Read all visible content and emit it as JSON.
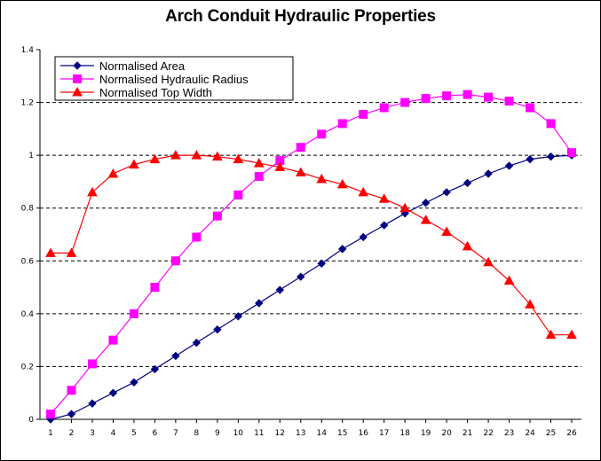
{
  "chart_data": {
    "type": "line",
    "title": "Arch Conduit Hydraulic Properties",
    "xlabel": "",
    "ylabel": "",
    "categories": [
      "1",
      "2",
      "3",
      "4",
      "5",
      "6",
      "7",
      "8",
      "9",
      "10",
      "11",
      "12",
      "13",
      "14",
      "15",
      "16",
      "17",
      "18",
      "19",
      "20",
      "21",
      "22",
      "23",
      "24",
      "25",
      "26"
    ],
    "ylim": [
      0,
      1.4
    ],
    "yticks": [
      "0",
      "0.2",
      "0.4",
      "0.6",
      "0.8",
      "1",
      "1.2",
      "1.4"
    ],
    "grid": "horizontal dashed at 0.2, 0.6, 0.8, 1.0, 1.2",
    "legend_position": "top-left",
    "series": [
      {
        "name": "Normalised Area",
        "color": "#000080",
        "marker": "diamond",
        "values": [
          0.0,
          0.02,
          0.06,
          0.1,
          0.14,
          0.19,
          0.24,
          0.29,
          0.34,
          0.39,
          0.44,
          0.49,
          0.54,
          0.59,
          0.645,
          0.69,
          0.735,
          0.78,
          0.82,
          0.86,
          0.895,
          0.93,
          0.96,
          0.985,
          0.995,
          1.0
        ]
      },
      {
        "name": "Normalised Hydraulic Radius",
        "color": "#ff00ff",
        "marker": "square",
        "values": [
          0.02,
          0.11,
          0.21,
          0.3,
          0.4,
          0.5,
          0.6,
          0.69,
          0.77,
          0.85,
          0.92,
          0.98,
          1.03,
          1.08,
          1.12,
          1.155,
          1.18,
          1.2,
          1.215,
          1.225,
          1.23,
          1.22,
          1.205,
          1.18,
          1.12,
          1.01
        ]
      },
      {
        "name": "Normalised Top Width",
        "color": "#ff0000",
        "marker": "triangle",
        "values": [
          0.63,
          0.63,
          0.86,
          0.93,
          0.965,
          0.985,
          1.0,
          1.0,
          0.995,
          0.985,
          0.97,
          0.955,
          0.935,
          0.91,
          0.89,
          0.86,
          0.835,
          0.8,
          0.755,
          0.71,
          0.655,
          0.595,
          0.525,
          0.435,
          0.32,
          0.32
        ]
      }
    ]
  }
}
